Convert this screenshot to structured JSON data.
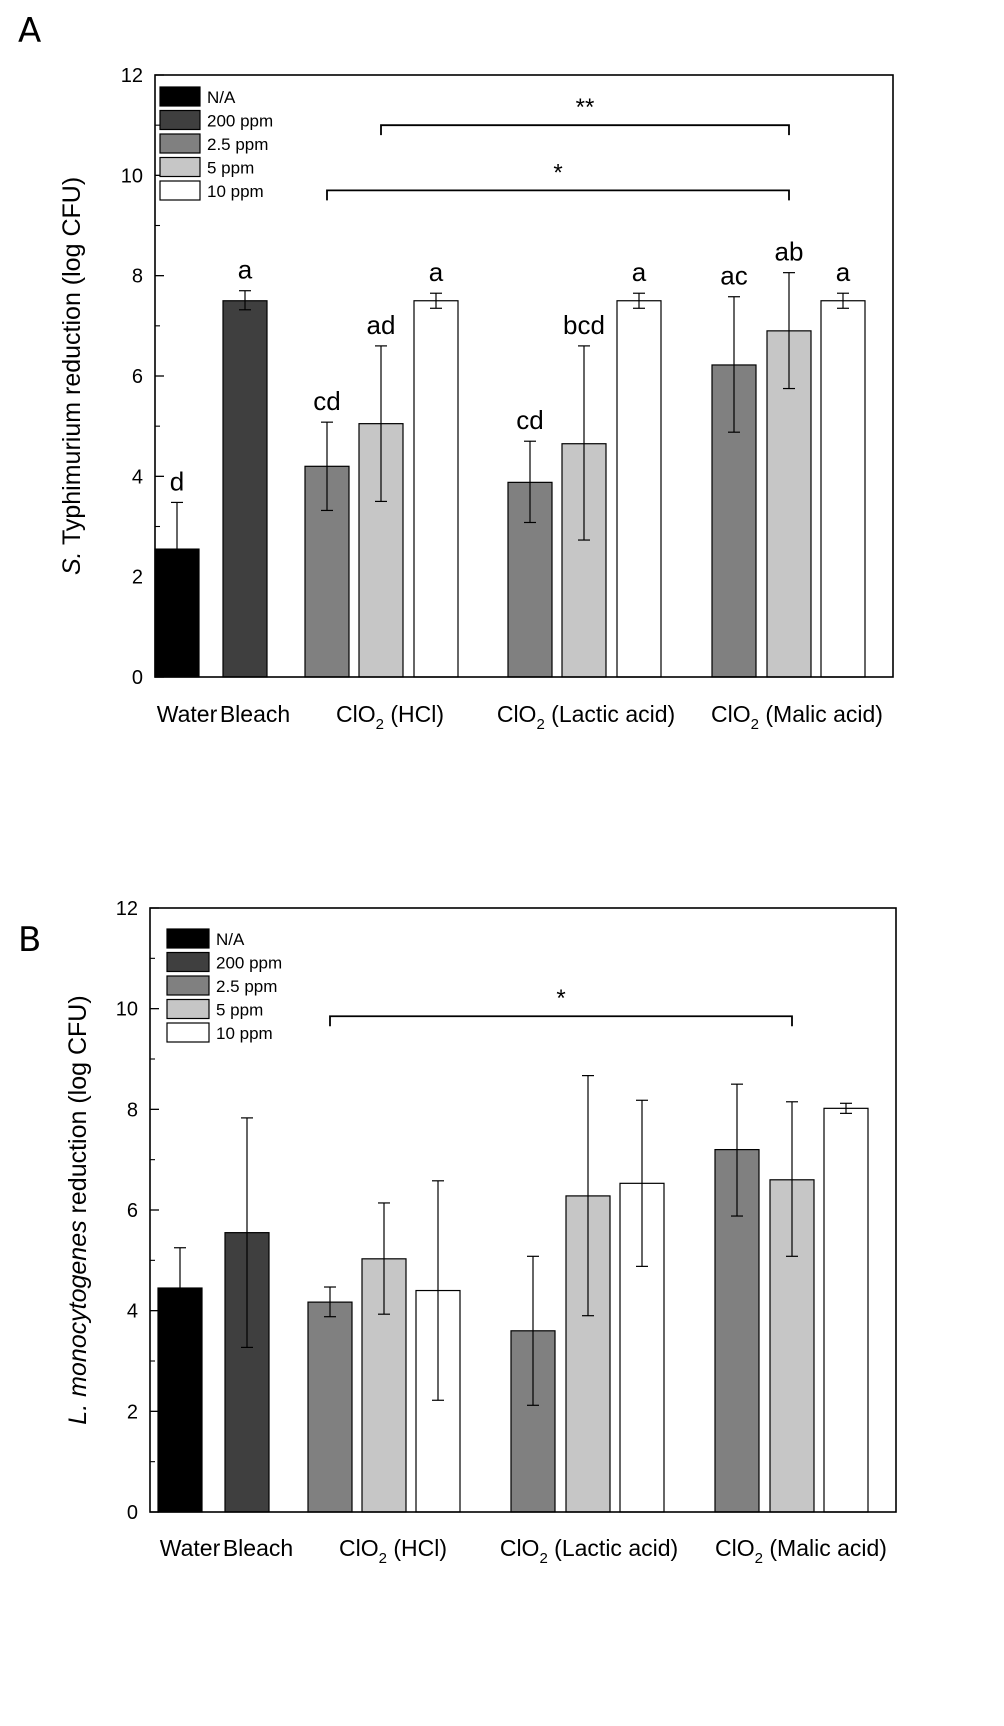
{
  "chart_data": [
    {
      "type": "bar",
      "panel": "A",
      "ylabel": {
        "italic": "S.",
        "rest": " Typhimurium reduction (log CFU)"
      },
      "ylim": [
        0,
        12
      ],
      "yticks": [
        "0",
        "2",
        "4",
        "6",
        "8",
        "10",
        "12"
      ],
      "xlabels": [
        {
          "main": "Water",
          "sub": "",
          "tail": ""
        },
        {
          "main": "Bleach",
          "sub": "",
          "tail": ""
        },
        {
          "main": "ClO",
          "sub": "2",
          "tail": " (HCl)"
        },
        {
          "main": "ClO",
          "sub": "2",
          "tail": " (Lactic acid)"
        },
        {
          "main": "ClO",
          "sub": "2",
          "tail": " (Malic acid)"
        }
      ],
      "legend": [
        {
          "label": "N/A",
          "color": "#000000"
        },
        {
          "label": "200 ppm",
          "color": "#3f3f3f"
        },
        {
          "label": "2.5 ppm",
          "color": "#808080"
        },
        {
          "label": "5 ppm",
          "color": "#c6c6c6"
        },
        {
          "label": "10 ppm",
          "color": "#ffffff"
        }
      ],
      "bars": [
        {
          "group": "Water",
          "series": "N/A",
          "value": 2.55,
          "err_low": 0.0,
          "err_high": 3.48,
          "letter": "d"
        },
        {
          "group": "Bleach",
          "series": "200 ppm",
          "value": 7.5,
          "err_low": 7.32,
          "err_high": 7.7,
          "letter": "a"
        },
        {
          "group": "ClO2 (HCl)",
          "series": "2.5 ppm",
          "value": 4.2,
          "err_low": 3.32,
          "err_high": 5.08,
          "letter": "cd"
        },
        {
          "group": "ClO2 (HCl)",
          "series": "5 ppm",
          "value": 5.05,
          "err_low": 3.5,
          "err_high": 6.6,
          "letter": "ad"
        },
        {
          "group": "ClO2 (HCl)",
          "series": "10 ppm",
          "value": 7.5,
          "err_low": 7.35,
          "err_high": 7.65,
          "letter": "a"
        },
        {
          "group": "ClO2 (Lactic acid)",
          "series": "2.5 ppm",
          "value": 3.88,
          "err_low": 3.08,
          "err_high": 4.7,
          "letter": "cd"
        },
        {
          "group": "ClO2 (Lactic acid)",
          "series": "5 ppm",
          "value": 4.65,
          "err_low": 2.73,
          "err_high": 6.6,
          "letter": "bcd"
        },
        {
          "group": "ClO2 (Lactic acid)",
          "series": "10 ppm",
          "value": 7.5,
          "err_low": 7.35,
          "err_high": 7.65,
          "letter": "a"
        },
        {
          "group": "ClO2 (Malic acid)",
          "series": "2.5 ppm",
          "value": 6.22,
          "err_low": 4.88,
          "err_high": 7.58,
          "letter": "ac"
        },
        {
          "group": "ClO2 (Malic acid)",
          "series": "5 ppm",
          "value": 6.9,
          "err_low": 5.75,
          "err_high": 8.06,
          "letter": "ab"
        },
        {
          "group": "ClO2 (Malic acid)",
          "series": "10 ppm",
          "value": 7.5,
          "err_low": 7.35,
          "err_high": 7.65,
          "letter": "a"
        }
      ],
      "brackets": [
        {
          "from_bar": 3,
          "to_bar": 9,
          "level": 11.0,
          "label": "**"
        },
        {
          "from_bar": 2,
          "to_bar": 9,
          "level": 9.7,
          "label": "*"
        }
      ]
    },
    {
      "type": "bar",
      "panel": "B",
      "ylabel": {
        "italic": "L. monocytogenes",
        "rest": " reduction (log CFU)"
      },
      "ylim": [
        0,
        12
      ],
      "yticks": [
        "0",
        "2",
        "4",
        "6",
        "8",
        "10",
        "12"
      ],
      "xlabels": [
        {
          "main": "Water",
          "sub": "",
          "tail": ""
        },
        {
          "main": "Bleach",
          "sub": "",
          "tail": ""
        },
        {
          "main": "ClO",
          "sub": "2",
          "tail": " (HCl)"
        },
        {
          "main": "ClO",
          "sub": "2",
          "tail": " (Lactic acid)"
        },
        {
          "main": "ClO",
          "sub": "2",
          "tail": " (Malic acid)"
        }
      ],
      "legend": [
        {
          "label": "N/A",
          "color": "#000000"
        },
        {
          "label": "200 ppm",
          "color": "#3f3f3f"
        },
        {
          "label": "2.5 ppm",
          "color": "#808080"
        },
        {
          "label": "5 ppm",
          "color": "#c6c6c6"
        },
        {
          "label": "10 ppm",
          "color": "#ffffff"
        }
      ],
      "bars": [
        {
          "group": "Water",
          "series": "N/A",
          "value": 4.45,
          "err_low": 3.65,
          "err_high": 5.25,
          "letter": ""
        },
        {
          "group": "Bleach",
          "series": "200 ppm",
          "value": 5.55,
          "err_low": 3.27,
          "err_high": 7.83,
          "letter": ""
        },
        {
          "group": "ClO2 (HCl)",
          "series": "2.5 ppm",
          "value": 4.17,
          "err_low": 3.88,
          "err_high": 4.47,
          "letter": ""
        },
        {
          "group": "ClO2 (HCl)",
          "series": "5 ppm",
          "value": 5.03,
          "err_low": 3.93,
          "err_high": 6.14,
          "letter": ""
        },
        {
          "group": "ClO2 (HCl)",
          "series": "10 ppm",
          "value": 4.4,
          "err_low": 2.22,
          "err_high": 6.58,
          "letter": ""
        },
        {
          "group": "ClO2 (Lactic acid)",
          "series": "2.5 ppm",
          "value": 3.6,
          "err_low": 2.12,
          "err_high": 5.08,
          "letter": ""
        },
        {
          "group": "ClO2 (Lactic acid)",
          "series": "5 ppm",
          "value": 6.28,
          "err_low": 3.9,
          "err_high": 8.67,
          "letter": ""
        },
        {
          "group": "ClO2 (Lactic acid)",
          "series": "10 ppm",
          "value": 6.53,
          "err_low": 4.88,
          "err_high": 8.18,
          "letter": ""
        },
        {
          "group": "ClO2 (Malic acid)",
          "series": "2.5 ppm",
          "value": 7.2,
          "err_low": 5.88,
          "err_high": 8.5,
          "letter": ""
        },
        {
          "group": "ClO2 (Malic acid)",
          "series": "5 ppm",
          "value": 6.6,
          "err_low": 5.08,
          "err_high": 8.15,
          "letter": ""
        },
        {
          "group": "ClO2 (Malic acid)",
          "series": "10 ppm",
          "value": 8.02,
          "err_low": 7.92,
          "err_high": 8.12,
          "letter": ""
        }
      ],
      "brackets": [
        {
          "from_bar": 2,
          "to_bar": 9,
          "level": 9.85,
          "label": "*"
        }
      ]
    }
  ]
}
